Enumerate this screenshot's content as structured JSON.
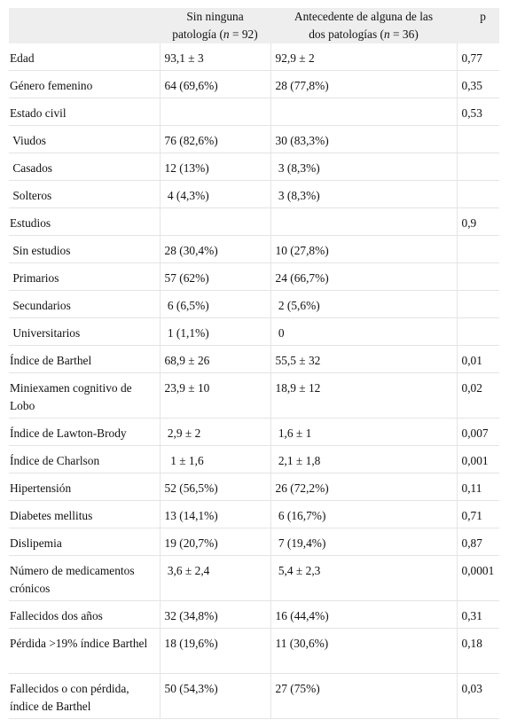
{
  "header": {
    "col2_line1": "Sin ninguna",
    "col2_line2_pre": "patología (",
    "col2_n": "n",
    "col2_line2_post": " = 92)",
    "col3_line1": "Antecedente de alguna de las",
    "col3_line2_pre": "dos patologías (",
    "col3_n": "n",
    "col3_line2_post": " = 36)",
    "col4": "p"
  },
  "rows": [
    {
      "label": "Edad",
      "a": "93,1 ± 3",
      "b": "92,9 ± 2",
      "p": "0,77"
    },
    {
      "label": "Género femenino",
      "a": "64 (69,6%)",
      "b": "28 (77,8%)",
      "p": "0,35"
    },
    {
      "label": "Estado civil",
      "a": "",
      "b": "",
      "p": "0,53"
    },
    {
      "label": " Viudos",
      "a": "76 (82,6%)",
      "b": "30 (83,3%)",
      "p": ""
    },
    {
      "label": " Casados",
      "a": "12 (13%)",
      "b": " 3 (8,3%)",
      "p": ""
    },
    {
      "label": " Solteros",
      "a": " 4 (4,3%)",
      "b": " 3 (8,3%)",
      "p": ""
    },
    {
      "label": "Estudios",
      "a": "",
      "b": "",
      "p": "0,9"
    },
    {
      "label": " Sin estudios",
      "a": "28 (30,4%)",
      "b": "10 (27,8%)",
      "p": ""
    },
    {
      "label": " Primarios",
      "a": "57 (62%)",
      "b": "24 (66,7%)",
      "p": ""
    },
    {
      "label": " Secundarios",
      "a": " 6 (6,5%)",
      "b": " 2 (5,6%)",
      "p": ""
    },
    {
      "label": " Universitarios",
      "a": " 1 (1,1%)",
      "b": " 0",
      "p": ""
    },
    {
      "label": "Índice de Barthel",
      "a": "68,9 ± 26",
      "b": "55,5 ± 32",
      "p": "0,01"
    },
    {
      "label": "Miniexamen cognitivo de Lobo",
      "a": "23,9 ± 10",
      "b": "18,9 ± 12",
      "p": "0,02"
    },
    {
      "label": "Índice de Lawton-Brody",
      "a": " 2,9 ± 2",
      "b": " 1,6 ± 1",
      "p": "0,007"
    },
    {
      "label": "Índice de Charlson",
      "a": "  1 ± 1,6",
      "b": " 2,1 ± 1,8",
      "p": "0,001"
    },
    {
      "label": "Hipertensión",
      "a": "52 (56,5%)",
      "b": "26 (72,2%)",
      "p": "0,11"
    },
    {
      "label": "Diabetes mellitus",
      "a": "13 (14,1%)",
      "b": " 6 (16,7%)",
      "p": "0,71"
    },
    {
      "label": "Dislipemia",
      "a": "19 (20,7%)",
      "b": " 7 (19,4%)",
      "p": "0,87"
    },
    {
      "label": "Número de medicamentos crónicos",
      "a": " 3,6 ± 2,4",
      "b": " 5,4 ± 2,3",
      "p": "0,0001"
    },
    {
      "label": "Fallecidos dos años",
      "a": "32 (34,8%)",
      "b": "16 (44,4%)",
      "p": "0,31"
    },
    {
      "label": "Pérdida >19% índice Barthel",
      "a": "18 (19,6%)",
      "b": "11 (30,6%)",
      "p": "0,18"
    },
    {
      "label": "Fallecidos o con pérdida, índice de Barthel",
      "a": "50 (54,3%)",
      "b": "27 (75%)",
      "p": "0,03"
    }
  ]
}
